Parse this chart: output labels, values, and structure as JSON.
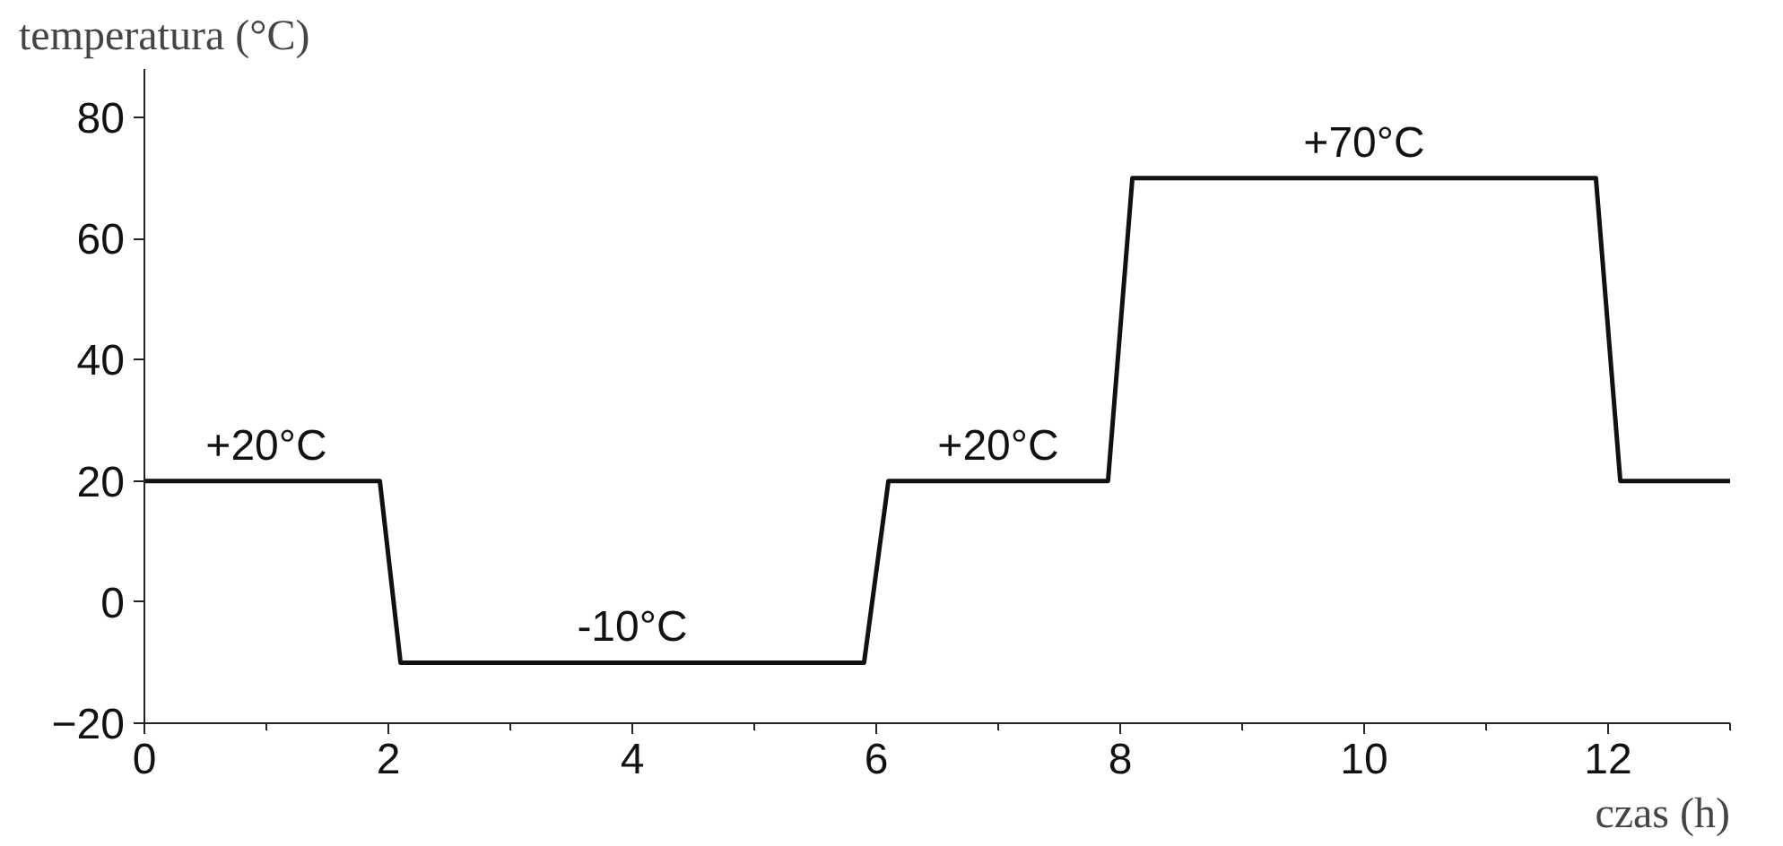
{
  "chart_data": {
    "type": "line",
    "xlabel": "czas (h)",
    "ylabel": "temperatura (°C)",
    "x": [
      0,
      1.93,
      2.1,
      5.9,
      6.1,
      7.9,
      8.1,
      11.9,
      12.1,
      13
    ],
    "values": [
      20,
      20,
      -10,
      -10,
      20,
      20,
      70,
      70,
      20,
      20
    ],
    "color": "#111111",
    "xlim": [
      0,
      13
    ],
    "ylim": [
      -20,
      88
    ],
    "xticks": [
      0,
      2,
      4,
      6,
      8,
      10,
      12
    ],
    "yticks": [
      -20,
      0,
      20,
      40,
      60,
      80
    ],
    "grid": false,
    "marker": "none",
    "line_style": "solid",
    "annotations": [
      {
        "text": "+20°C",
        "x": 1,
        "y": 20
      },
      {
        "text": "-10°C",
        "x": 4,
        "y": -10
      },
      {
        "text": "+20°C",
        "x": 7,
        "y": 20
      },
      {
        "text": "+70°C",
        "x": 10,
        "y": 70
      }
    ]
  }
}
